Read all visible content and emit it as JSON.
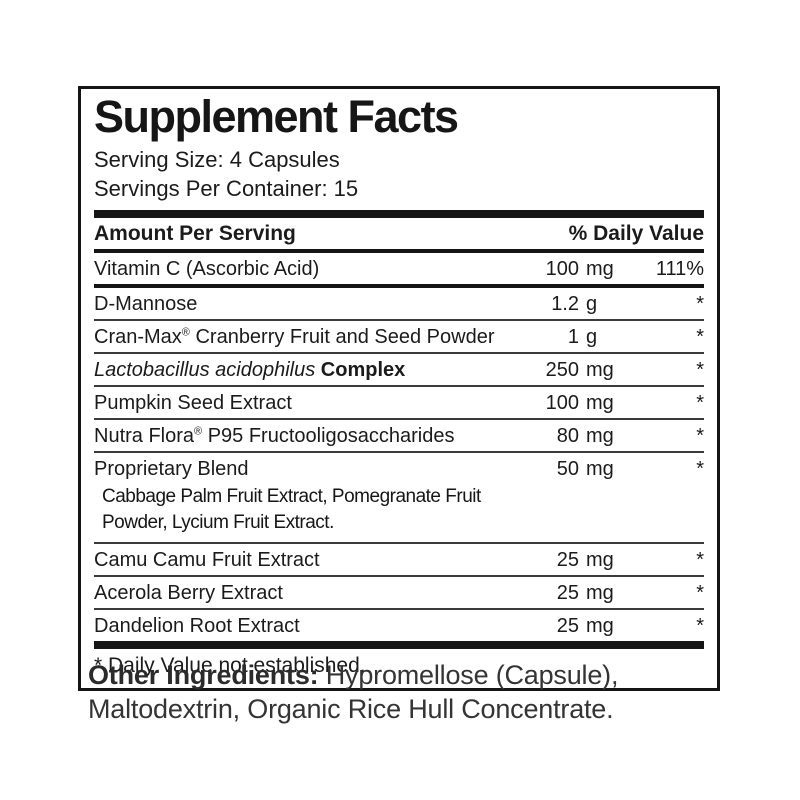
{
  "panel": {
    "title": "Supplement Facts",
    "serving_size": "Serving Size: 4 Capsules",
    "servings_per_container": "Servings Per Container: 15",
    "columns": {
      "amount": "Amount Per Serving",
      "daily_value": "% Daily Value"
    },
    "rows": [
      {
        "name": "Vitamin C (Ascorbic Acid)",
        "amount": "100",
        "unit": "mg",
        "dv": "111%"
      },
      {
        "name": "D-Mannose",
        "amount": "1.2",
        "unit": "g",
        "dv": "*"
      },
      {
        "name_pre": "Cran-Max",
        "name_reg": "®",
        "name_post": " Cranberry Fruit and Seed Powder",
        "amount": "1",
        "unit": "g",
        "dv": "*"
      },
      {
        "name_italic": "Lactobacillus acidophilus",
        "name_bold": " Complex",
        "amount": "250",
        "unit": "mg",
        "dv": "*"
      },
      {
        "name": "Pumpkin Seed Extract",
        "amount": "100",
        "unit": "mg",
        "dv": "*"
      },
      {
        "name_pre": "Nutra Flora",
        "name_reg": "®",
        "name_post": " P95 Fructooligosaccharides",
        "amount": "80",
        "unit": "mg",
        "dv": "*"
      },
      {
        "name": "Proprietary Blend",
        "amount": "50",
        "unit": "mg",
        "dv": "*",
        "sub_lines": [
          "Cabbage Palm Fruit Extract, Pomegranate Fruit",
          "Powder, Lycium Fruit Extract."
        ]
      },
      {
        "name": "Camu Camu Fruit Extract",
        "amount": "25",
        "unit": "mg",
        "dv": "*"
      },
      {
        "name": "Acerola Berry Extract",
        "amount": "25",
        "unit": "mg",
        "dv": "*"
      },
      {
        "name": "Dandelion Root Extract",
        "amount": "25",
        "unit": "mg",
        "dv": "*"
      }
    ],
    "footnote": "* Daily Value not established."
  },
  "other_ingredients": {
    "label": "Other Ingredients:",
    "text": " Hypromellose (Capsule), Maltodextrin, Organic Rice Hull Concentrate."
  },
  "colors": {
    "ink": "#151515",
    "rule": "#3a3a3a",
    "body_text": "#343434"
  }
}
